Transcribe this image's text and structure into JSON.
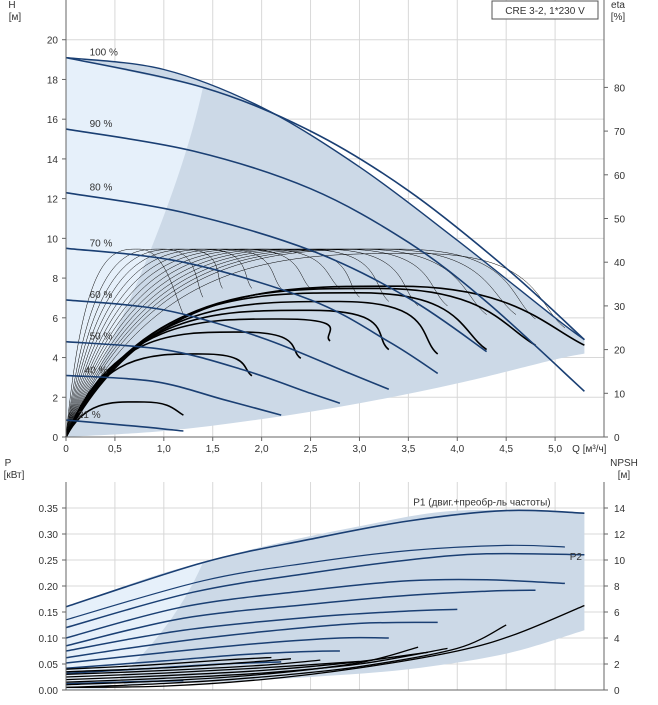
{
  "colors": {
    "navy": "#1a3f73",
    "envelope_fill": "#ccd9e7",
    "envelope_fill_light": "#e6f0fa",
    "eta_curve": "#000000",
    "grid": "#d8d8d8",
    "axis_text": "#333333"
  },
  "chart_data": [
    {
      "type": "line",
      "subtitle": "CRE 3-2, 1*230 V",
      "xlabel": "Q [м³/ч]",
      "ylabel": "H [м]",
      "y2label": "eta [%]",
      "xlim": [
        0,
        5.5
      ],
      "ylim": [
        0,
        22
      ],
      "y2lim": [
        0,
        100
      ],
      "xticks": [
        "0",
        "0,5",
        "1,0",
        "1,5",
        "2,0",
        "2,5",
        "3,0",
        "3,5",
        "4,0",
        "4,5",
        "5,0"
      ],
      "yticks": [
        "0",
        "2",
        "4",
        "6",
        "8",
        "10",
        "12",
        "14",
        "16",
        "18",
        "20"
      ],
      "y2ticks": [
        "0",
        "10",
        "20",
        "30",
        "40",
        "50",
        "60",
        "70",
        "80"
      ],
      "grid": true,
      "envelope": {
        "upper": [
          [
            0,
            19.1
          ],
          [
            1.0,
            18.5
          ],
          [
            2.0,
            16.6
          ],
          [
            3.0,
            13.6
          ],
          [
            4.0,
            9.9
          ],
          [
            5.0,
            6.0
          ],
          [
            5.3,
            4.9
          ]
        ],
        "lower": [
          [
            0,
            0
          ],
          [
            1.0,
            0.3
          ],
          [
            2.0,
            0.9
          ],
          [
            3.0,
            1.7
          ],
          [
            4.0,
            2.7
          ],
          [
            5.0,
            3.9
          ],
          [
            5.3,
            4.2
          ]
        ],
        "light_bound": [
          [
            1.4,
            17.6
          ],
          [
            0.0,
            0.0
          ]
        ]
      },
      "speed_curves": [
        {
          "label": "100 %",
          "label_x": 0.2,
          "x": [
            0,
            1.4,
            2.5,
            3.5,
            4.5,
            5.3
          ],
          "y": [
            19.1,
            17.6,
            15.4,
            12.4,
            8.5,
            4.9
          ]
        },
        {
          "label": "90 %",
          "label_x": 0.2,
          "x": [
            0,
            1.3,
            2.5,
            3.5,
            4.3,
            5.3
          ],
          "y": [
            15.5,
            14.4,
            12.5,
            9.8,
            6.8,
            2.3
          ]
        },
        {
          "label": "80 %",
          "label_x": 0.2,
          "x": [
            0,
            1.2,
            2.5,
            3.5,
            4.3
          ],
          "y": [
            12.3,
            11.3,
            9.4,
            7.0,
            4.3
          ]
        },
        {
          "label": "70 %",
          "label_x": 0.2,
          "x": [
            0,
            1.2,
            2.5,
            3.3,
            3.8
          ],
          "y": [
            9.5,
            8.8,
            6.9,
            4.8,
            3.2
          ]
        },
        {
          "label": "60 %",
          "label_x": 0.2,
          "x": [
            0,
            1.0,
            2.0,
            2.9,
            3.3
          ],
          "y": [
            6.9,
            6.4,
            5.0,
            3.2,
            2.4
          ]
        },
        {
          "label": "50 %",
          "label_x": 0.2,
          "x": [
            0,
            1.0,
            1.8,
            2.5,
            2.8
          ],
          "y": [
            4.8,
            4.4,
            3.4,
            2.2,
            1.7
          ]
        },
        {
          "label": "40 %",
          "label_x": 0.15,
          "x": [
            0,
            0.9,
            1.6,
            2.2
          ],
          "y": [
            3.1,
            2.8,
            1.9,
            1.1
          ]
        },
        {
          "label": "21 %",
          "label_x": 0.08,
          "x": [
            0,
            0.7,
            1.1,
            1.2
          ],
          "y": [
            0.85,
            0.55,
            0.35,
            0.3
          ]
        }
      ],
      "eta_curves": [
        {
          "peak": [
            0.75,
            43
          ],
          "end": [
            1.2,
            28
          ],
          "bold": false
        },
        {
          "peak": [
            1.0,
            43
          ],
          "end": [
            1.4,
            32
          ],
          "bold": false
        },
        {
          "peak": [
            1.2,
            43
          ],
          "end": [
            1.6,
            34
          ],
          "bold": false
        },
        {
          "peak": [
            1.4,
            43
          ],
          "end": [
            1.9,
            34
          ],
          "bold": false
        },
        {
          "peak": [
            1.6,
            43
          ],
          "end": [
            2.2,
            34
          ],
          "bold": false
        },
        {
          "peak": [
            1.8,
            43
          ],
          "end": [
            2.5,
            34
          ],
          "bold": false
        },
        {
          "peak": [
            2.0,
            43
          ],
          "end": [
            2.8,
            34
          ],
          "bold": false
        },
        {
          "peak": [
            2.2,
            43
          ],
          "end": [
            3.0,
            32
          ],
          "bold": false
        },
        {
          "peak": [
            2.4,
            43
          ],
          "end": [
            3.3,
            31
          ],
          "bold": false
        },
        {
          "peak": [
            2.6,
            43
          ],
          "end": [
            3.6,
            30
          ],
          "bold": false
        },
        {
          "peak": [
            2.8,
            43
          ],
          "end": [
            3.9,
            30
          ],
          "bold": false
        },
        {
          "peak": [
            3.0,
            43
          ],
          "end": [
            4.3,
            28
          ],
          "bold": false
        },
        {
          "peak": [
            3.2,
            43
          ],
          "end": [
            4.6,
            28
          ],
          "bold": false
        },
        {
          "peak": [
            3.4,
            43
          ],
          "end": [
            4.8,
            27
          ],
          "bold": false
        },
        {
          "peak": [
            3.6,
            42
          ],
          "end": [
            5.1,
            25
          ],
          "bold": false
        },
        {
          "peak": [
            0.8,
            8
          ],
          "end": [
            1.2,
            5
          ],
          "bold": true
        },
        {
          "peak": [
            1.4,
            19
          ],
          "end": [
            1.9,
            14
          ],
          "bold": true
        },
        {
          "peak": [
            1.8,
            24
          ],
          "end": [
            2.4,
            18
          ],
          "bold": true
        },
        {
          "peak": [
            2.2,
            27
          ],
          "end": [
            2.7,
            22
          ],
          "bold": true
        },
        {
          "peak": [
            2.5,
            29
          ],
          "end": [
            3.3,
            20
          ],
          "bold": true
        },
        {
          "peak": [
            2.8,
            31
          ],
          "end": [
            3.8,
            19
          ],
          "bold": true
        },
        {
          "peak": [
            3.0,
            33
          ],
          "end": [
            4.3,
            20
          ],
          "bold": true
        },
        {
          "peak": [
            3.2,
            34
          ],
          "end": [
            4.8,
            21
          ],
          "bold": true
        },
        {
          "peak": [
            3.4,
            34.5
          ],
          "end": [
            5.3,
            21
          ],
          "bold": true
        }
      ]
    },
    {
      "type": "line",
      "xlabel": "",
      "ylabel": "P [кВт]",
      "y2label": "NPSH [м]",
      "xlim": [
        0,
        5.5
      ],
      "ylim": [
        0,
        0.4
      ],
      "y2lim": [
        0,
        16
      ],
      "yticks": [
        "0.00",
        "0.05",
        "0.10",
        "0.15",
        "0.20",
        "0.25",
        "0.30",
        "0.35"
      ],
      "y2ticks": [
        "0",
        "2",
        "4",
        "6",
        "8",
        "10",
        "12",
        "14"
      ],
      "grid": true,
      "envelope": {
        "upper": [
          [
            0,
            0.16
          ],
          [
            1.0,
            0.225
          ],
          [
            2.0,
            0.275
          ],
          [
            3.0,
            0.315
          ],
          [
            4.0,
            0.345
          ],
          [
            5.3,
            0.34
          ]
        ],
        "lower": [
          [
            0.6,
            0.01
          ],
          [
            1.5,
            0.015
          ],
          [
            2.5,
            0.025
          ],
          [
            3.5,
            0.04
          ],
          [
            4.5,
            0.07
          ],
          [
            5.3,
            0.115
          ]
        ],
        "light_bound": [
          [
            1.4,
            0.245
          ],
          [
            0.4,
            0.0
          ]
        ]
      },
      "series": [
        {
          "name": "P1 (двиг.+преобр-ль частоты)",
          "x": [
            0,
            1.4,
            2.5,
            3.5,
            4.5,
            5.3
          ],
          "y": [
            0.16,
            0.245,
            0.29,
            0.325,
            0.345,
            0.34
          ]
        },
        {
          "name": "P2",
          "x": [
            0,
            1.4,
            2.5,
            3.5,
            4.5,
            5.1
          ],
          "y": [
            0.135,
            0.21,
            0.245,
            0.268,
            0.278,
            0.275
          ]
        }
      ],
      "power_curves": [
        {
          "x": [
            0,
            1.3,
            2.5,
            3.5,
            4.3,
            5.3
          ],
          "y": [
            0.12,
            0.188,
            0.225,
            0.25,
            0.262,
            0.26
          ]
        },
        {
          "x": [
            0,
            1.2,
            2.5,
            3.5,
            4.3,
            5.1
          ],
          "y": [
            0.1,
            0.16,
            0.192,
            0.21,
            0.212,
            0.205
          ]
        },
        {
          "x": [
            0,
            1.2,
            2.5,
            3.5,
            4.3,
            4.8
          ],
          "y": [
            0.085,
            0.138,
            0.165,
            0.182,
            0.19,
            0.192
          ]
        },
        {
          "x": [
            0,
            1.2,
            2.5,
            3.5,
            4.0
          ],
          "y": [
            0.075,
            0.115,
            0.14,
            0.152,
            0.155
          ]
        },
        {
          "x": [
            0,
            1.0,
            2.0,
            3.0,
            3.8
          ],
          "y": [
            0.062,
            0.09,
            0.112,
            0.128,
            0.13
          ]
        },
        {
          "x": [
            0,
            1.0,
            2.0,
            2.8,
            3.3
          ],
          "y": [
            0.052,
            0.072,
            0.09,
            0.1,
            0.1
          ]
        },
        {
          "x": [
            0,
            1.0,
            1.8,
            2.5,
            2.8
          ],
          "y": [
            0.042,
            0.056,
            0.068,
            0.074,
            0.075
          ]
        },
        {
          "x": [
            0,
            0.9,
            1.6,
            2.2
          ],
          "y": [
            0.032,
            0.042,
            0.05,
            0.054
          ]
        },
        {
          "x": [
            0,
            0.7,
            1.2
          ],
          "y": [
            0.012,
            0.016,
            0.018
          ]
        }
      ],
      "npsh_curves": [
        {
          "x": [
            0.0,
            1.0,
            2.0,
            3.0,
            4.0,
            4.6,
            5.3
          ],
          "y": [
            0.2,
            0.3,
            0.8,
            1.7,
            3.0,
            4.3,
            6.5
          ]
        },
        {
          "x": [
            0.0,
            1.0,
            2.0,
            3.0,
            4.0,
            4.5
          ],
          "y": [
            0.2,
            0.5,
            1.0,
            1.8,
            3.2,
            5.0
          ]
        },
        {
          "x": [
            0.0,
            1.0,
            2.0,
            3.0,
            3.6
          ],
          "y": [
            0.4,
            0.7,
            1.2,
            2.1,
            3.3
          ]
        },
        {
          "x": [
            0.0,
            1.0,
            2.0,
            3.0,
            3.9
          ],
          "y": [
            0.6,
            0.9,
            1.3,
            2.0,
            3.2
          ]
        },
        {
          "x": [
            0.0,
            1.0,
            2.0,
            2.9,
            3.7
          ],
          "y": [
            0.8,
            1.1,
            1.5,
            2.1,
            2.9
          ]
        },
        {
          "x": [
            0.0,
            1.0,
            2.0,
            3.0
          ],
          "y": [
            1.0,
            1.3,
            1.7,
            2.2
          ]
        },
        {
          "x": [
            0.0,
            1.0,
            2.0,
            2.6
          ],
          "y": [
            1.2,
            1.5,
            1.9,
            2.3
          ]
        },
        {
          "x": [
            0.0,
            1.0,
            1.8,
            2.3
          ],
          "y": [
            1.4,
            1.7,
            2.1,
            2.4
          ]
        },
        {
          "x": [
            0.0,
            0.8,
            1.6,
            2.1
          ],
          "y": [
            1.6,
            1.9,
            2.3,
            2.5
          ]
        }
      ]
    }
  ]
}
